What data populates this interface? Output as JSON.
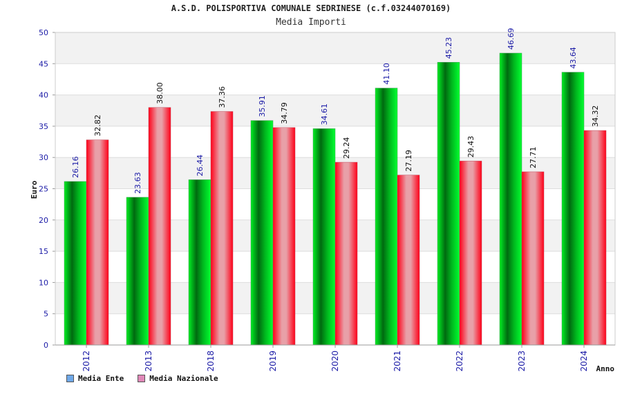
{
  "chart_data": {
    "type": "bar",
    "title": "A.S.D. POLISPORTIVA COMUNALE SEDRINESE (c.f.03244070169)",
    "subtitle": "Media Importi",
    "xlabel": "Anno",
    "ylabel": "Euro",
    "ylim": [
      0,
      50
    ],
    "yticks": [
      "0",
      "5",
      "10",
      "15",
      "20",
      "25",
      "30",
      "35",
      "40",
      "45",
      "50"
    ],
    "categories": [
      "2012",
      "2013",
      "2018",
      "2019",
      "2020",
      "2021",
      "2022",
      "2023",
      "2024"
    ],
    "series": [
      {
        "name": "Media Ente",
        "values": [
          26.16,
          23.63,
          26.44,
          35.91,
          34.61,
          41.1,
          45.23,
          46.69,
          43.64
        ],
        "labels": [
          "26.16",
          "23.63",
          "26.44",
          "35.91",
          "34.61",
          "41.10",
          "45.23",
          "46.69",
          "43.64"
        ],
        "color": "#00cc22",
        "legend_color": "#6fa8e8"
      },
      {
        "name": "Media Nazionale",
        "values": [
          32.82,
          38.0,
          37.36,
          34.79,
          29.24,
          27.19,
          29.43,
          27.71,
          34.32
        ],
        "labels": [
          "32.82",
          "38.00",
          "37.36",
          "34.79",
          "29.24",
          "27.19",
          "29.43",
          "27.71",
          "34.32"
        ],
        "color": "#ff1a2a",
        "legend_color": "#e088b8"
      }
    ],
    "grid": true,
    "legend_position": "bottom-left"
  }
}
